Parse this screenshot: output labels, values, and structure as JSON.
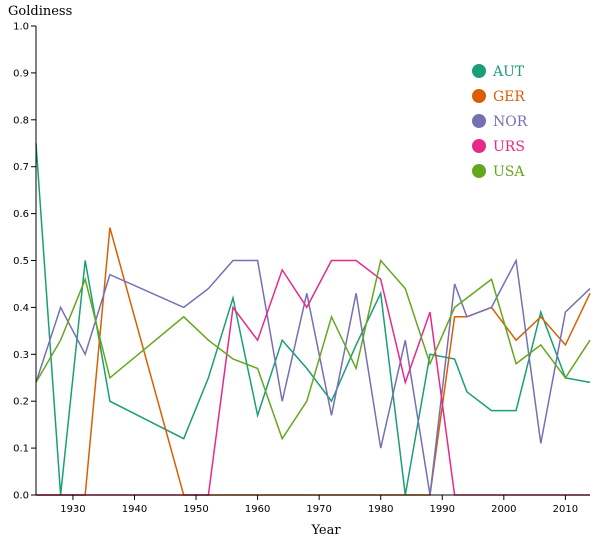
{
  "chart_data": {
    "type": "line",
    "ylabel": "Goldiness",
    "xlabel": "Year",
    "xlim": [
      1924,
      2014
    ],
    "ylim": [
      0,
      1
    ],
    "x_ticks": [
      "1930",
      "1940",
      "1950",
      "1960",
      "1970",
      "1980",
      "1990",
      "2000",
      "2010"
    ],
    "y_ticks": [
      "0.0",
      "0.1",
      "0.2",
      "0.3",
      "0.4",
      "0.5",
      "0.6",
      "0.7",
      "0.8",
      "0.9",
      "1.0"
    ],
    "legend_position": "top-right",
    "grid": false,
    "series": [
      {
        "name": "AUT",
        "color": "#1b9e77",
        "points": [
          [
            1924,
            0.75
          ],
          [
            1928,
            0.0
          ],
          [
            1932,
            0.5
          ],
          [
            1936,
            0.2
          ],
          [
            1948,
            0.12
          ],
          [
            1952,
            0.25
          ],
          [
            1956,
            0.42
          ],
          [
            1960,
            0.17
          ],
          [
            1964,
            0.33
          ],
          [
            1968,
            0.27
          ],
          [
            1972,
            0.2
          ],
          [
            1976,
            0.32
          ],
          [
            1980,
            0.43
          ],
          [
            1984,
            0.0
          ],
          [
            1988,
            0.3
          ],
          [
            1992,
            0.29
          ],
          [
            1994,
            0.22
          ],
          [
            1998,
            0.18
          ],
          [
            2002,
            0.18
          ],
          [
            2006,
            0.39
          ],
          [
            2010,
            0.25
          ],
          [
            2014,
            0.24
          ]
        ]
      },
      {
        "name": "GER",
        "color": "#d95f02",
        "points": [
          [
            1924,
            0.0
          ],
          [
            1928,
            0.0
          ],
          [
            1932,
            0.0
          ],
          [
            1936,
            0.57
          ],
          [
            1948,
            0.0
          ],
          [
            1952,
            0.0
          ],
          [
            1956,
            0.0
          ],
          [
            1960,
            0.0
          ],
          [
            1964,
            0.0
          ],
          [
            1968,
            0.0
          ],
          [
            1972,
            0.0
          ],
          [
            1976,
            0.0
          ],
          [
            1980,
            0.0
          ],
          [
            1984,
            0.0
          ],
          [
            1988,
            0.0
          ],
          [
            1992,
            0.38
          ],
          [
            1994,
            0.38
          ],
          [
            1998,
            0.4
          ],
          [
            2002,
            0.33
          ],
          [
            2006,
            0.38
          ],
          [
            2010,
            0.32
          ],
          [
            2014,
            0.43
          ]
        ]
      },
      {
        "name": "NOR",
        "color": "#7570b3",
        "points": [
          [
            1924,
            0.24
          ],
          [
            1928,
            0.4
          ],
          [
            1932,
            0.3
          ],
          [
            1936,
            0.47
          ],
          [
            1948,
            0.4
          ],
          [
            1952,
            0.44
          ],
          [
            1956,
            0.5
          ],
          [
            1960,
            0.5
          ],
          [
            1964,
            0.2
          ],
          [
            1968,
            0.43
          ],
          [
            1972,
            0.17
          ],
          [
            1976,
            0.43
          ],
          [
            1980,
            0.1
          ],
          [
            1984,
            0.33
          ],
          [
            1988,
            0.0
          ],
          [
            1992,
            0.45
          ],
          [
            1994,
            0.38
          ],
          [
            1998,
            0.4
          ],
          [
            2002,
            0.5
          ],
          [
            2006,
            0.11
          ],
          [
            2010,
            0.39
          ],
          [
            2014,
            0.44
          ]
        ]
      },
      {
        "name": "URS",
        "color": "#e7298a",
        "points": [
          [
            1924,
            0.0
          ],
          [
            1928,
            0.0
          ],
          [
            1932,
            0.0
          ],
          [
            1936,
            0.0
          ],
          [
            1948,
            0.0
          ],
          [
            1952,
            0.0
          ],
          [
            1956,
            0.4
          ],
          [
            1960,
            0.33
          ],
          [
            1964,
            0.48
          ],
          [
            1968,
            0.4
          ],
          [
            1972,
            0.5
          ],
          [
            1976,
            0.5
          ],
          [
            1980,
            0.46
          ],
          [
            1984,
            0.24
          ],
          [
            1988,
            0.39
          ],
          [
            1992,
            0.0
          ],
          [
            1994,
            0.0
          ],
          [
            1998,
            0.0
          ],
          [
            2002,
            0.0
          ],
          [
            2006,
            0.0
          ],
          [
            2010,
            0.0
          ],
          [
            2014,
            0.0
          ]
        ]
      },
      {
        "name": "USA",
        "color": "#66a61e",
        "points": [
          [
            1924,
            0.24
          ],
          [
            1928,
            0.33
          ],
          [
            1932,
            0.46
          ],
          [
            1936,
            0.25
          ],
          [
            1948,
            0.38
          ],
          [
            1952,
            0.33
          ],
          [
            1956,
            0.29
          ],
          [
            1960,
            0.27
          ],
          [
            1964,
            0.12
          ],
          [
            1968,
            0.2
          ],
          [
            1972,
            0.38
          ],
          [
            1976,
            0.27
          ],
          [
            1980,
            0.5
          ],
          [
            1984,
            0.44
          ],
          [
            1988,
            0.28
          ],
          [
            1992,
            0.4
          ],
          [
            1994,
            0.42
          ],
          [
            1998,
            0.46
          ],
          [
            2002,
            0.28
          ],
          [
            2006,
            0.32
          ],
          [
            2010,
            0.25
          ],
          [
            2014,
            0.33
          ]
        ]
      }
    ]
  }
}
